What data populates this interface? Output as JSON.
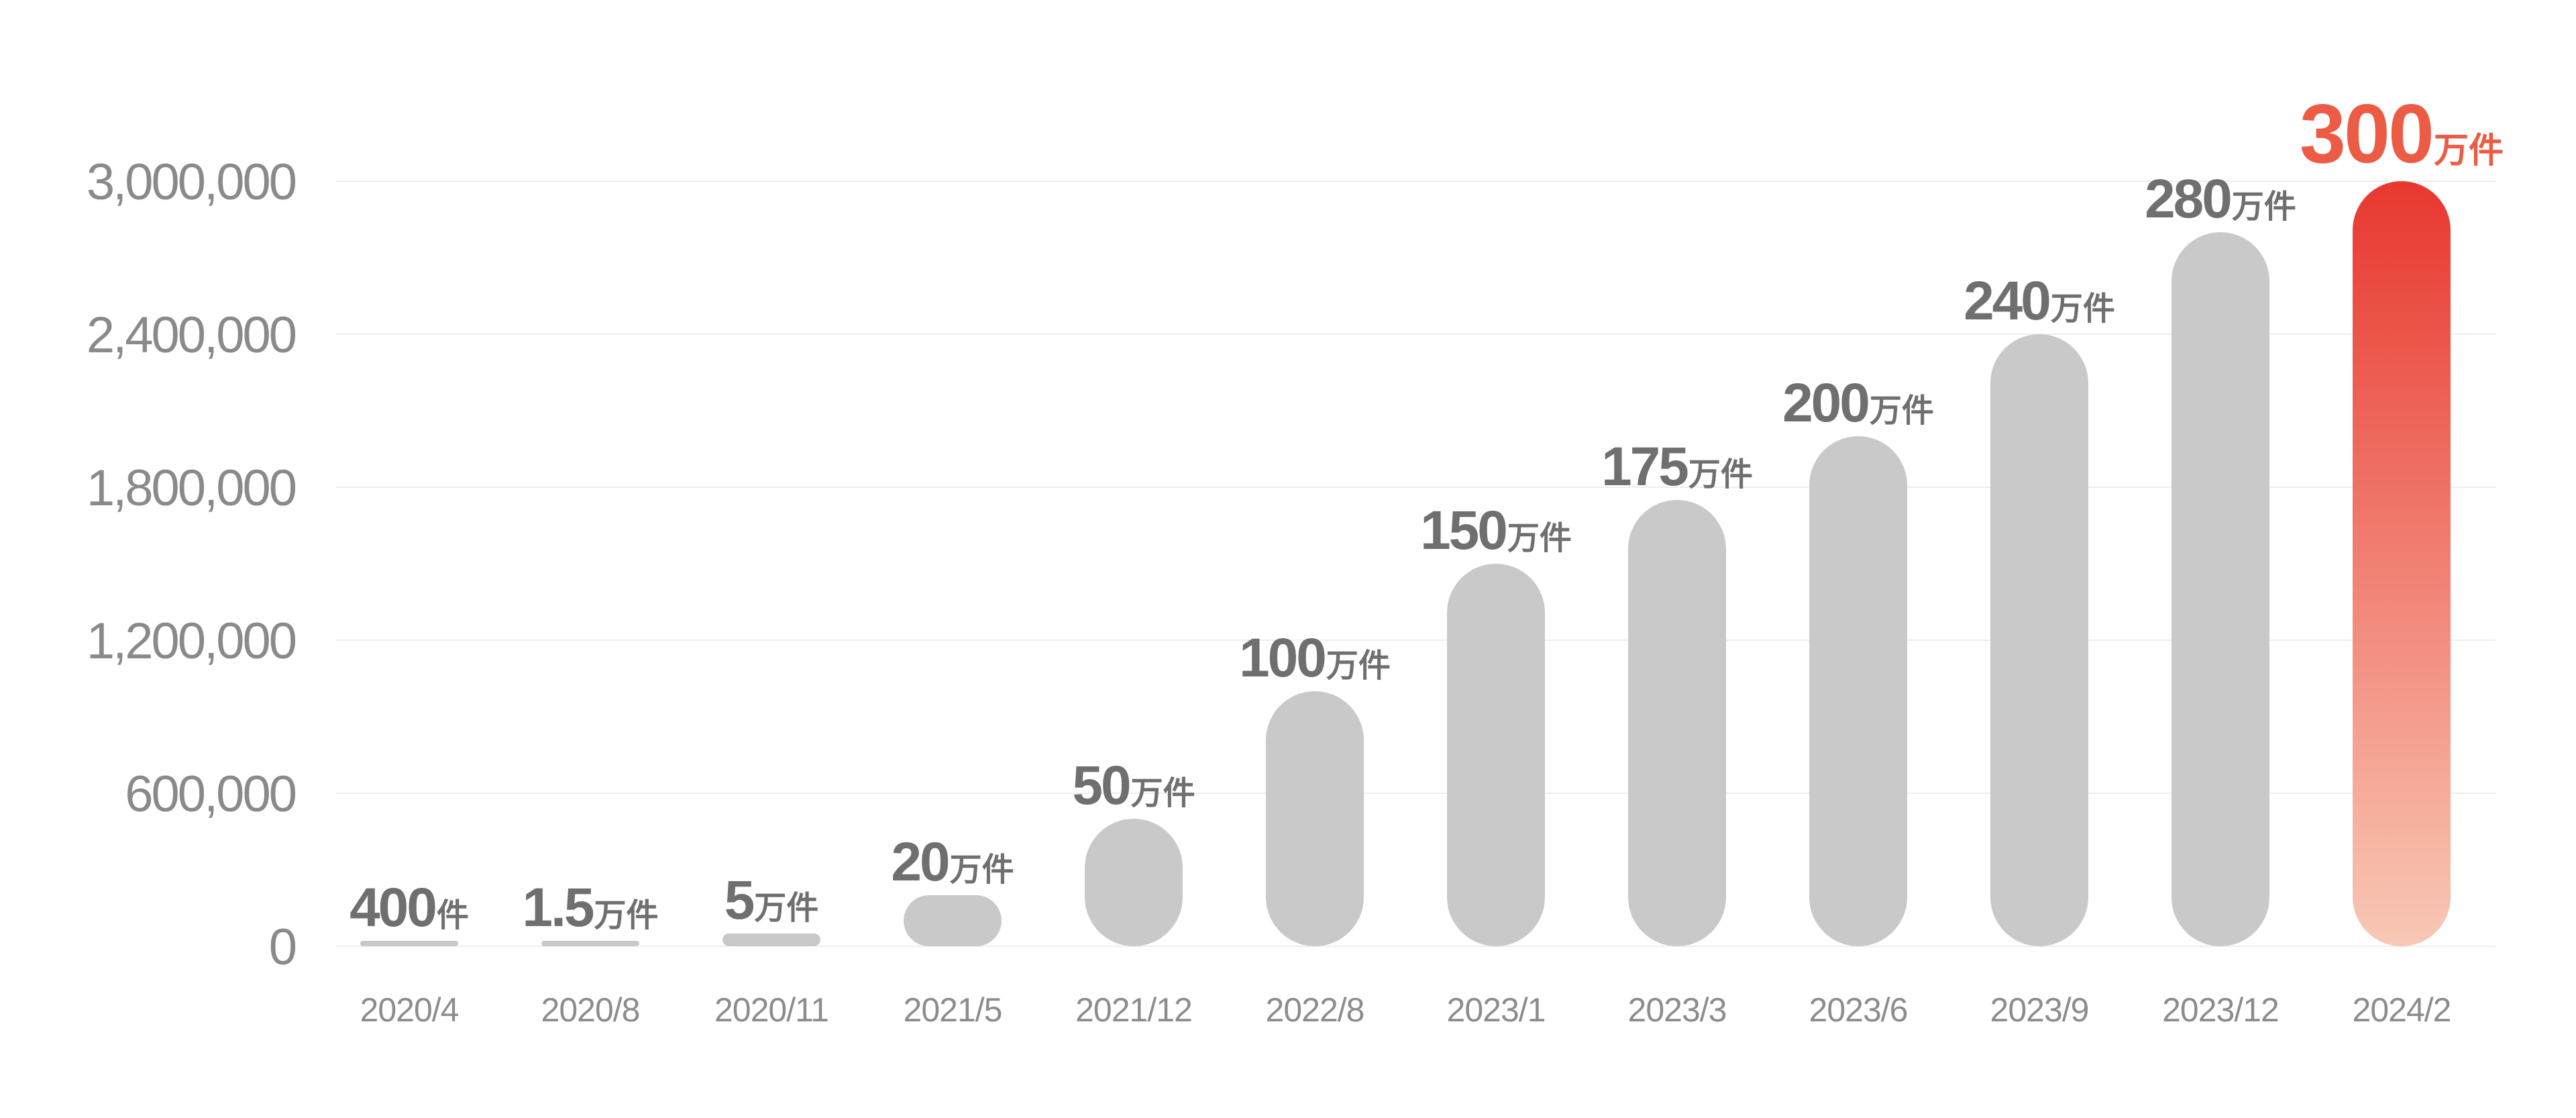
{
  "chart_data": {
    "type": "bar",
    "categories": [
      "2020/4",
      "2020/8",
      "2020/11",
      "2021/5",
      "2021/12",
      "2022/8",
      "2023/1",
      "2023/3",
      "2023/6",
      "2023/9",
      "2023/12",
      "2024/2"
    ],
    "values": [
      400,
      15000,
      50000,
      200000,
      500000,
      1000000,
      1500000,
      1750000,
      2000000,
      2400000,
      2800000,
      3000000
    ],
    "data_labels": [
      {
        "number": "400",
        "unit": "件"
      },
      {
        "number": "1.5",
        "unit": "万件"
      },
      {
        "number": "5",
        "unit": "万件"
      },
      {
        "number": "20",
        "unit": "万件"
      },
      {
        "number": "50",
        "unit": "万件"
      },
      {
        "number": "100",
        "unit": "万件"
      },
      {
        "number": "150",
        "unit": "万件"
      },
      {
        "number": "175",
        "unit": "万件"
      },
      {
        "number": "200",
        "unit": "万件"
      },
      {
        "number": "240",
        "unit": "万件"
      },
      {
        "number": "280",
        "unit": "万件"
      },
      {
        "number": "300",
        "unit": "万件"
      }
    ],
    "y_ticks": [
      "0",
      "600,000",
      "1,200,000",
      "1,800,000",
      "2,400,000",
      "3,000,000"
    ],
    "ylim": [
      0,
      3000000
    ],
    "grid": true,
    "legend": "none",
    "highlight_index": 11,
    "colors": {
      "bar": "#c8c9c8",
      "highlight_top": "#e8382f",
      "highlight_bottom": "#f9c8b6",
      "label": "#6f6f6f",
      "highlight_label": "#ec5b43",
      "axis_text": "#8a8a8a"
    }
  }
}
